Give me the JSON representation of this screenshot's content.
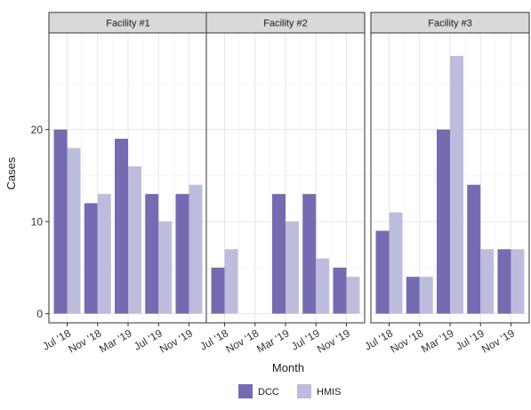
{
  "chart_data": {
    "type": "bar",
    "xlabel": "Month",
    "ylabel": "Cases",
    "ylim": [
      -1,
      30.5
    ],
    "yticks": [
      0,
      10,
      20
    ],
    "categories": [
      "Jul '18",
      "Nov '18",
      "Mar '19",
      "Jul '19",
      "Nov '19"
    ],
    "series_colors": {
      "DCC": "#756bb1",
      "HMIS": "#bcbddc"
    },
    "legend": {
      "position": "bottom",
      "entries": [
        "DCC",
        "HMIS"
      ]
    },
    "grid": true,
    "facets": [
      {
        "label": "Facility #1",
        "series": [
          {
            "name": "DCC",
            "values": [
              20,
              12,
              19,
              13,
              13
            ]
          },
          {
            "name": "HMIS",
            "values": [
              18,
              13,
              16,
              10,
              14
            ]
          }
        ]
      },
      {
        "label": "Facility #2",
        "series": [
          {
            "name": "DCC",
            "values": [
              5,
              null,
              13,
              13,
              5
            ]
          },
          {
            "name": "HMIS",
            "values": [
              7,
              null,
              10,
              6,
              4
            ]
          }
        ]
      },
      {
        "label": "Facility #3",
        "series": [
          {
            "name": "DCC",
            "values": [
              9,
              4,
              20,
              14,
              7
            ]
          },
          {
            "name": "HMIS",
            "values": [
              11,
              4,
              28,
              7,
              7
            ]
          }
        ]
      }
    ]
  }
}
